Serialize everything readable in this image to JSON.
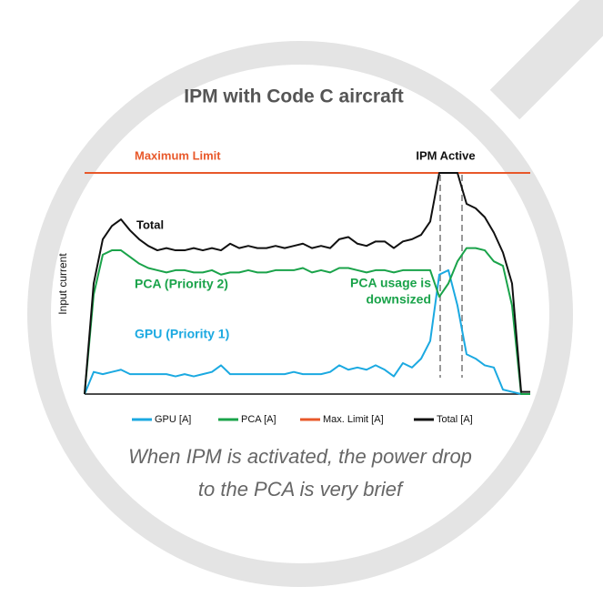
{
  "chart_data": {
    "type": "line",
    "title": "IPM with Code C aircraft",
    "y_label": "Input current",
    "xlim": [
      0,
      49
    ],
    "ylim": [
      0,
      100
    ],
    "x": [
      0,
      1,
      2,
      3,
      4,
      5,
      6,
      7,
      8,
      9,
      10,
      11,
      12,
      13,
      14,
      15,
      16,
      17,
      18,
      19,
      20,
      21,
      22,
      23,
      24,
      25,
      26,
      27,
      28,
      29,
      30,
      31,
      32,
      33,
      34,
      35,
      36,
      37,
      38,
      39,
      40,
      41,
      42,
      43,
      44,
      45,
      46,
      47,
      48,
      49
    ],
    "series": [
      {
        "name": "GPU [A]",
        "color": "#1ba9e1",
        "values": [
          0,
          10,
          9,
          10,
          11,
          9,
          9,
          9,
          9,
          9,
          8,
          9,
          8,
          9,
          10,
          13,
          9,
          9,
          9,
          9,
          9,
          9,
          9,
          10,
          9,
          9,
          9,
          10,
          13,
          11,
          12,
          11,
          13,
          11,
          8,
          14,
          12,
          16,
          24,
          54,
          56,
          40,
          18,
          16,
          13,
          12,
          2,
          1,
          0,
          0
        ]
      },
      {
        "name": "PCA [A]",
        "color": "#1aa34a",
        "values": [
          0,
          45,
          63,
          65,
          65,
          62,
          59,
          57,
          56,
          55,
          56,
          56,
          55,
          55,
          56,
          54,
          55,
          55,
          56,
          55,
          55,
          56,
          56,
          56,
          57,
          55,
          56,
          55,
          57,
          57,
          56,
          55,
          56,
          56,
          55,
          56,
          56,
          56,
          56,
          44,
          50,
          60,
          66,
          66,
          65,
          60,
          58,
          40,
          0,
          0
        ]
      },
      {
        "name": "Max. Limit [A]",
        "color": "#e8582a",
        "values": [
          100,
          100,
          100,
          100,
          100,
          100,
          100,
          100,
          100,
          100,
          100,
          100,
          100,
          100,
          100,
          100,
          100,
          100,
          100,
          100,
          100,
          100,
          100,
          100,
          100,
          100,
          100,
          100,
          100,
          100,
          100,
          100,
          100,
          100,
          100,
          100,
          100,
          100,
          100,
          100,
          100,
          100,
          100,
          100,
          100,
          100,
          100,
          100,
          100,
          100
        ]
      },
      {
        "name": "Total [A]",
        "color": "#111111",
        "values": [
          0,
          50,
          70,
          76,
          79,
          74,
          70,
          67,
          65,
          66,
          65,
          65,
          66,
          65,
          66,
          65,
          68,
          66,
          67,
          66,
          66,
          67,
          66,
          67,
          68,
          66,
          67,
          66,
          70,
          71,
          68,
          67,
          69,
          69,
          66,
          69,
          70,
          72,
          78,
          100,
          100,
          100,
          86,
          84,
          80,
          73,
          64,
          50,
          1,
          1
        ]
      }
    ],
    "annotations": [
      {
        "text": "Maximum Limit",
        "color": "#e8582a"
      },
      {
        "text": "IPM Active",
        "color": "#111111"
      },
      {
        "text": "Total",
        "color": "#111111"
      },
      {
        "text": "PCA (Priority 2)",
        "color": "#1aa34a"
      },
      {
        "text": "PCA usage is",
        "color": "#1aa34a"
      },
      {
        "text": "downsized",
        "color": "#1aa34a"
      },
      {
        "text": "GPU (Priority 1)",
        "color": "#1ba9e1"
      }
    ],
    "caption": [
      "When IPM is activated, the power drop",
      "to the PCA is very brief"
    ]
  }
}
